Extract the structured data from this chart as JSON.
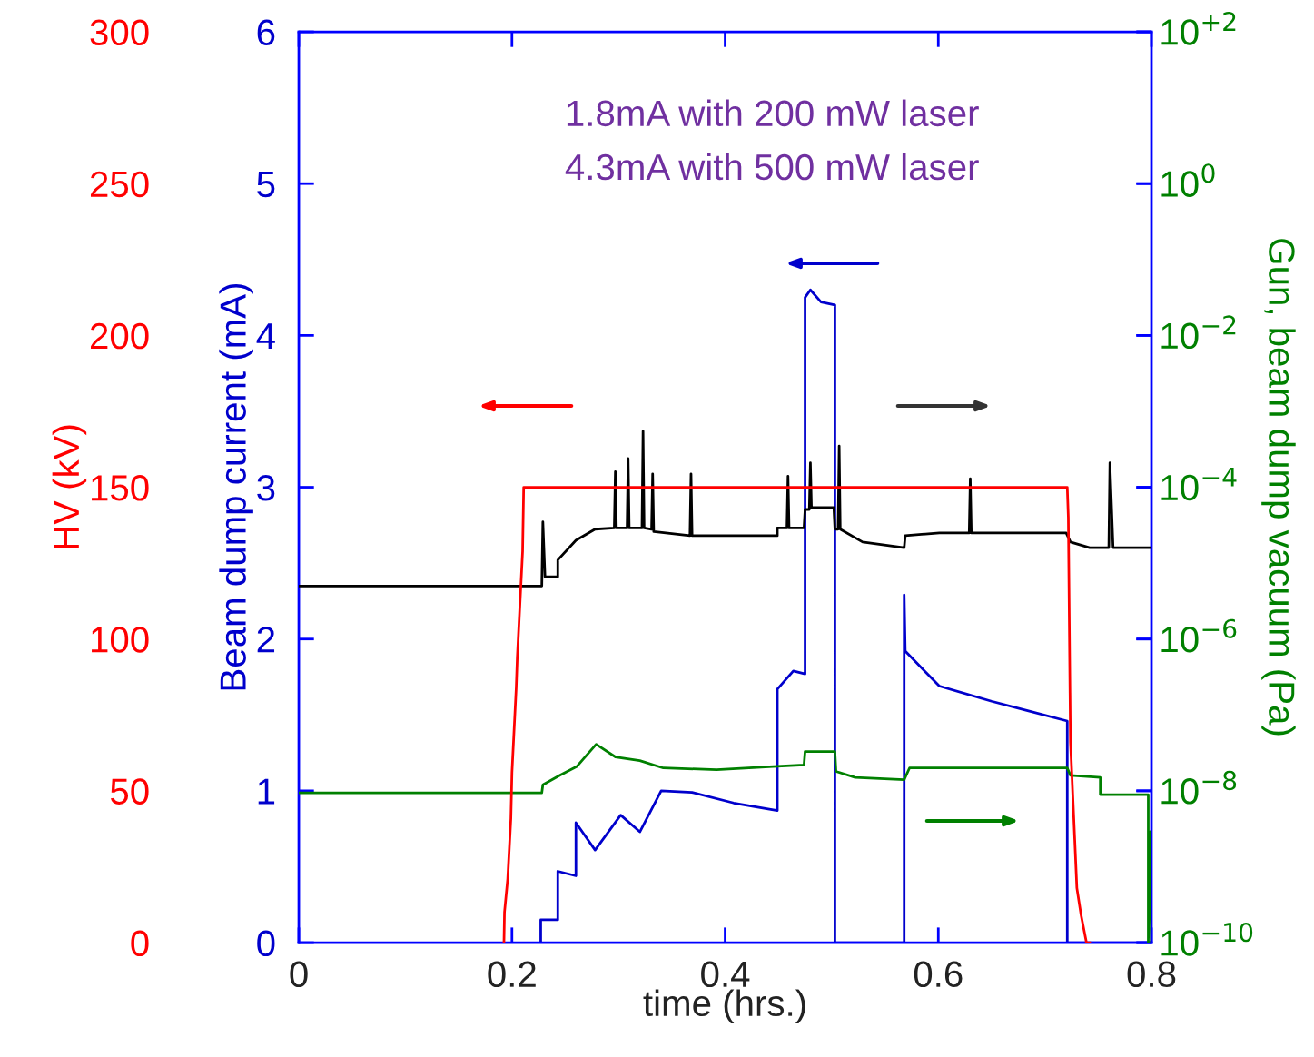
{
  "chart_data": {
    "type": "line",
    "xlabel": "time (hrs.)",
    "ylabel": "Beam dump current (mA)",
    "y2label": "Gun, beam dump vacuum (Pa)",
    "y3label": "HV (kV)",
    "xlim": [
      0,
      0.8
    ],
    "xticks": [
      0,
      0.2,
      0.4,
      0.6,
      0.8
    ],
    "ylim": [
      0,
      6
    ],
    "yticks": [
      0,
      1,
      2,
      3,
      4,
      5,
      6
    ],
    "y2lim": [
      1e-10,
      100
    ],
    "y2ticks": [
      {
        "value": 1e-10,
        "label": "10$^{−10}$"
      },
      {
        "value": 1e-08,
        "label": "10$^{−8}$"
      },
      {
        "value": 1e-06,
        "label": "10$^{−6}$"
      },
      {
        "value": 0.0001,
        "label": "10$^{−4}$"
      },
      {
        "value": 0.01,
        "label": "10$^{−2}$"
      },
      {
        "value": 1,
        "label": "10$^{0}$"
      },
      {
        "value": 100,
        "label": "10$^{+2}$"
      }
    ],
    "y3lim": [
      0,
      300
    ],
    "y3ticks": [
      0,
      50,
      100,
      150,
      200,
      250,
      300
    ],
    "log": "y2",
    "grid": false,
    "annotations": [
      "1.8mA with 200 mW laser",
      "4.3mA with 500 mW laser"
    ],
    "series": [
      {
        "color": "#ff0000",
        "axis": "y3",
        "x": [
          0.1925,
          0.193,
          0.196,
          0.199,
          0.2,
          0.204,
          0.205,
          0.21,
          0.211,
          0.721,
          0.722,
          0.724,
          0.728,
          0.73,
          0.734,
          0.739,
          0.742
        ],
        "values": [
          0,
          10,
          21,
          41,
          56,
          84,
          94,
          129,
          150,
          150,
          140,
          66,
          34,
          18,
          9,
          0,
          0
        ]
      },
      {
        "color": "#0000cc",
        "axis": "y",
        "x": [
          0.227,
          0.227,
          0.243,
          0.243,
          0.26,
          0.26,
          0.278,
          0.302,
          0.32,
          0.34,
          0.369,
          0.408,
          0.449,
          0.449,
          0.464,
          0.475,
          0.475,
          0.48,
          0.49,
          0.503,
          0.503,
          0.568,
          0.568,
          0.569,
          0.601,
          0.65,
          0.683,
          0.721,
          0.721,
          0.8
        ],
        "values": [
          0,
          0.15,
          0.15,
          0.47,
          0.44,
          0.79,
          0.61,
          0.84,
          0.73,
          1.0,
          0.99,
          0.92,
          0.87,
          1.67,
          1.79,
          1.77,
          4.25,
          4.3,
          4.22,
          4.2,
          0,
          0,
          2.29,
          1.92,
          1.69,
          1.59,
          1.53,
          1.46,
          0,
          0
        ]
      },
      {
        "color": "#000000",
        "axis": "y2",
        "x": [
          0,
          0.228,
          0.229,
          0.231,
          0.243,
          0.243,
          0.26,
          0.278,
          0.296,
          0.297,
          0.298,
          0.308,
          0.309,
          0.31,
          0.322,
          0.323,
          0.324,
          0.331,
          0.332,
          0.333,
          0.367,
          0.368,
          0.369,
          0.449,
          0.449,
          0.458,
          0.459,
          0.46,
          0.474,
          0.475,
          0.479,
          0.48,
          0.481,
          0.502,
          0.503,
          0.506,
          0.507,
          0.508,
          0.529,
          0.568,
          0.569,
          0.601,
          0.629,
          0.63,
          0.631,
          0.72,
          0.724,
          0.742,
          0.76,
          0.761,
          0.764,
          0.8
        ],
        "values": [
          5e-06,
          5e-06,
          3.5e-05,
          6.6e-06,
          6.6e-06,
          1.1e-05,
          2e-05,
          2.8e-05,
          2.9e-05,
          0.00016,
          2.9e-05,
          2.9e-05,
          0.00024,
          2.9e-05,
          2.9e-05,
          0.00055,
          2.9e-05,
          2.8e-05,
          0.00015,
          2.6e-05,
          2.3e-05,
          0.00015,
          2.3e-05,
          2.3e-05,
          2.9e-05,
          2.9e-05,
          0.00014,
          2.9e-05,
          2.9e-05,
          5.1e-05,
          5.1e-05,
          0.00021,
          5.4e-05,
          5.4e-05,
          2.8e-05,
          2.8e-05,
          0.00035,
          2.8e-05,
          1.9e-05,
          1.6e-05,
          2.3e-05,
          2.5e-05,
          2.5e-05,
          0.00013,
          2.5e-05,
          2.5e-05,
          1.9e-05,
          1.6e-05,
          1.6e-05,
          0.00021,
          1.6e-05,
          1.6e-05
        ]
      },
      {
        "color": "#008000",
        "axis": "y2",
        "x": [
          0,
          0.228,
          0.229,
          0.245,
          0.261,
          0.279,
          0.297,
          0.32,
          0.342,
          0.392,
          0.449,
          0.474,
          0.475,
          0.503,
          0.504,
          0.522,
          0.568,
          0.573,
          0.721,
          0.724,
          0.752,
          0.752,
          0.797,
          0.797,
          0.799,
          0.8
        ],
        "values": [
          9.4e-09,
          9.4e-09,
          1.2e-08,
          1.6e-08,
          2.1e-08,
          4.1e-08,
          2.8e-08,
          2.5e-08,
          2e-08,
          1.9e-08,
          2.1e-08,
          2.2e-08,
          3.3e-08,
          3.3e-08,
          1.8e-08,
          1.5e-08,
          1.4e-08,
          2e-08,
          2e-08,
          1.6e-08,
          1.5e-08,
          8.9e-09,
          8.9e-09,
          1e-10,
          2.9e-09,
          1e-10
        ]
      }
    ]
  }
}
